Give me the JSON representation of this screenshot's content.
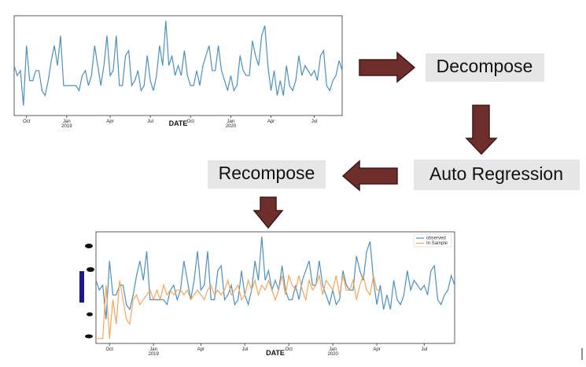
{
  "nodes": [
    {
      "label": "Decompose"
    },
    {
      "label": "Auto Regression"
    },
    {
      "label": "Recompose"
    }
  ],
  "chart_data": [
    {
      "type": "line",
      "x_label": "DATE",
      "xlim": [
        0,
        106
      ],
      "ylim": [
        0,
        10
      ],
      "xticks": [
        {
          "value": 4,
          "label": "Oct"
        },
        {
          "value": 17,
          "label": "Jan 2019"
        },
        {
          "value": 31,
          "label": "Apr"
        },
        {
          "value": 44,
          "label": "Jul"
        },
        {
          "value": 57,
          "label": "Oct"
        },
        {
          "value": 70,
          "label": "Jan 2020"
        },
        {
          "value": 83,
          "label": "Apr"
        },
        {
          "value": 97,
          "label": "Jul"
        }
      ],
      "series": [
        {
          "color": "#4a90c2",
          "values": [
            5,
            4,
            4.5,
            1,
            7,
            3.5,
            3.5,
            4.5,
            4.5,
            2.5,
            2,
            3.5,
            5.5,
            7,
            5,
            8,
            3,
            3,
            3,
            3,
            3,
            2.5,
            4,
            4.5,
            3,
            4,
            7,
            5,
            3,
            5,
            8,
            4,
            4.5,
            8,
            3,
            3,
            6,
            6.5,
            3,
            3.5,
            4.5,
            2.5,
            3,
            6,
            3.5,
            2.5,
            4,
            7,
            5,
            9.5,
            5,
            6,
            4,
            5,
            4,
            6.5,
            4,
            3,
            3,
            4.5,
            3,
            5,
            6,
            7,
            4.5,
            4.5,
            7,
            4.5,
            3.5,
            2.5,
            4,
            2.5,
            3,
            6,
            4.5,
            4,
            4,
            7.5,
            6,
            5,
            8,
            9,
            5,
            2.5,
            4.5,
            2,
            3.5,
            2,
            5,
            3,
            2.5,
            3.5,
            6,
            4,
            5,
            4.5,
            4,
            4.5,
            3.5,
            6,
            6.5,
            3,
            2.5,
            3.5,
            4,
            5.5,
            4.5
          ]
        }
      ]
    },
    {
      "type": "line",
      "x_label": "DATE",
      "xlim": [
        0,
        106
      ],
      "ylim": [
        -1.5,
        10
      ],
      "legend": "upper right",
      "xticks": [
        {
          "value": 4,
          "label": "Oct"
        },
        {
          "value": 17,
          "label": "Jan 2019"
        },
        {
          "value": 31,
          "label": "Apr"
        },
        {
          "value": 44,
          "label": "Jul"
        },
        {
          "value": 57,
          "label": "Oct"
        },
        {
          "value": 70,
          "label": "Jan 2020"
        },
        {
          "value": 83,
          "label": "Apr"
        },
        {
          "value": 97,
          "label": "Jul"
        }
      ],
      "series": [
        {
          "name": "observed",
          "color": "#4a90c2",
          "values": [
            5,
            4,
            4.5,
            1,
            7,
            3.5,
            3.5,
            4.5,
            4.5,
            2.5,
            2,
            3.5,
            5.5,
            7,
            5,
            8,
            3,
            3,
            3,
            3,
            3,
            2.5,
            4,
            4.5,
            3,
            4,
            7,
            5,
            3,
            5,
            8,
            4,
            4.5,
            8,
            3,
            3,
            6,
            6.5,
            3,
            3.5,
            4.5,
            2.5,
            3,
            6,
            3.5,
            2.5,
            4,
            7,
            5,
            9.5,
            5,
            6,
            4,
            5,
            4,
            6.5,
            4,
            3,
            3,
            4.5,
            3,
            5,
            6,
            7,
            4.5,
            4.5,
            7,
            4.5,
            3.5,
            2.5,
            4,
            2.5,
            3,
            6,
            4.5,
            4,
            4,
            7.5,
            6,
            5,
            8,
            9,
            5,
            2.5,
            4.5,
            2,
            3.5,
            2,
            5,
            3,
            2.5,
            3.5,
            6,
            4,
            5,
            4.5,
            4,
            4.5,
            3.5,
            6,
            6.5,
            3,
            2.5,
            3.5,
            4,
            5.5,
            4.5
          ]
        },
        {
          "name": "In Sample",
          "color": "#f5a55a",
          "values": [
            -1,
            -1,
            -1,
            4.5,
            -1,
            3,
            0.5,
            5,
            3,
            1,
            0.5,
            3,
            3.5,
            2.5,
            3,
            3.5,
            4,
            3,
            4,
            3,
            4.5,
            3.5,
            4,
            3.5,
            4,
            4,
            3.5,
            4,
            3,
            3.5,
            4,
            3.5,
            3,
            4,
            4.5,
            3.5,
            4,
            3.5,
            4,
            5,
            3.5,
            4,
            4.5,
            3,
            3.5,
            5,
            4,
            5,
            3.5,
            4.5,
            4,
            5,
            4,
            3,
            4,
            5.5,
            3.5,
            5.5,
            4.5,
            4,
            5.5,
            4,
            3,
            5,
            4,
            4.5,
            5.5,
            3.5,
            5,
            4.5,
            4,
            5.5,
            3.5,
            5.5,
            4,
            4,
            5,
            3,
            4.5,
            5.5,
            4,
            3.5,
            5.5,
            4,
            4,
            null,
            null,
            null,
            null,
            null,
            null,
            null,
            null,
            null,
            null,
            null,
            null,
            null,
            null,
            null,
            null,
            null,
            null,
            null,
            null,
            null,
            null
          ]
        }
      ]
    }
  ]
}
